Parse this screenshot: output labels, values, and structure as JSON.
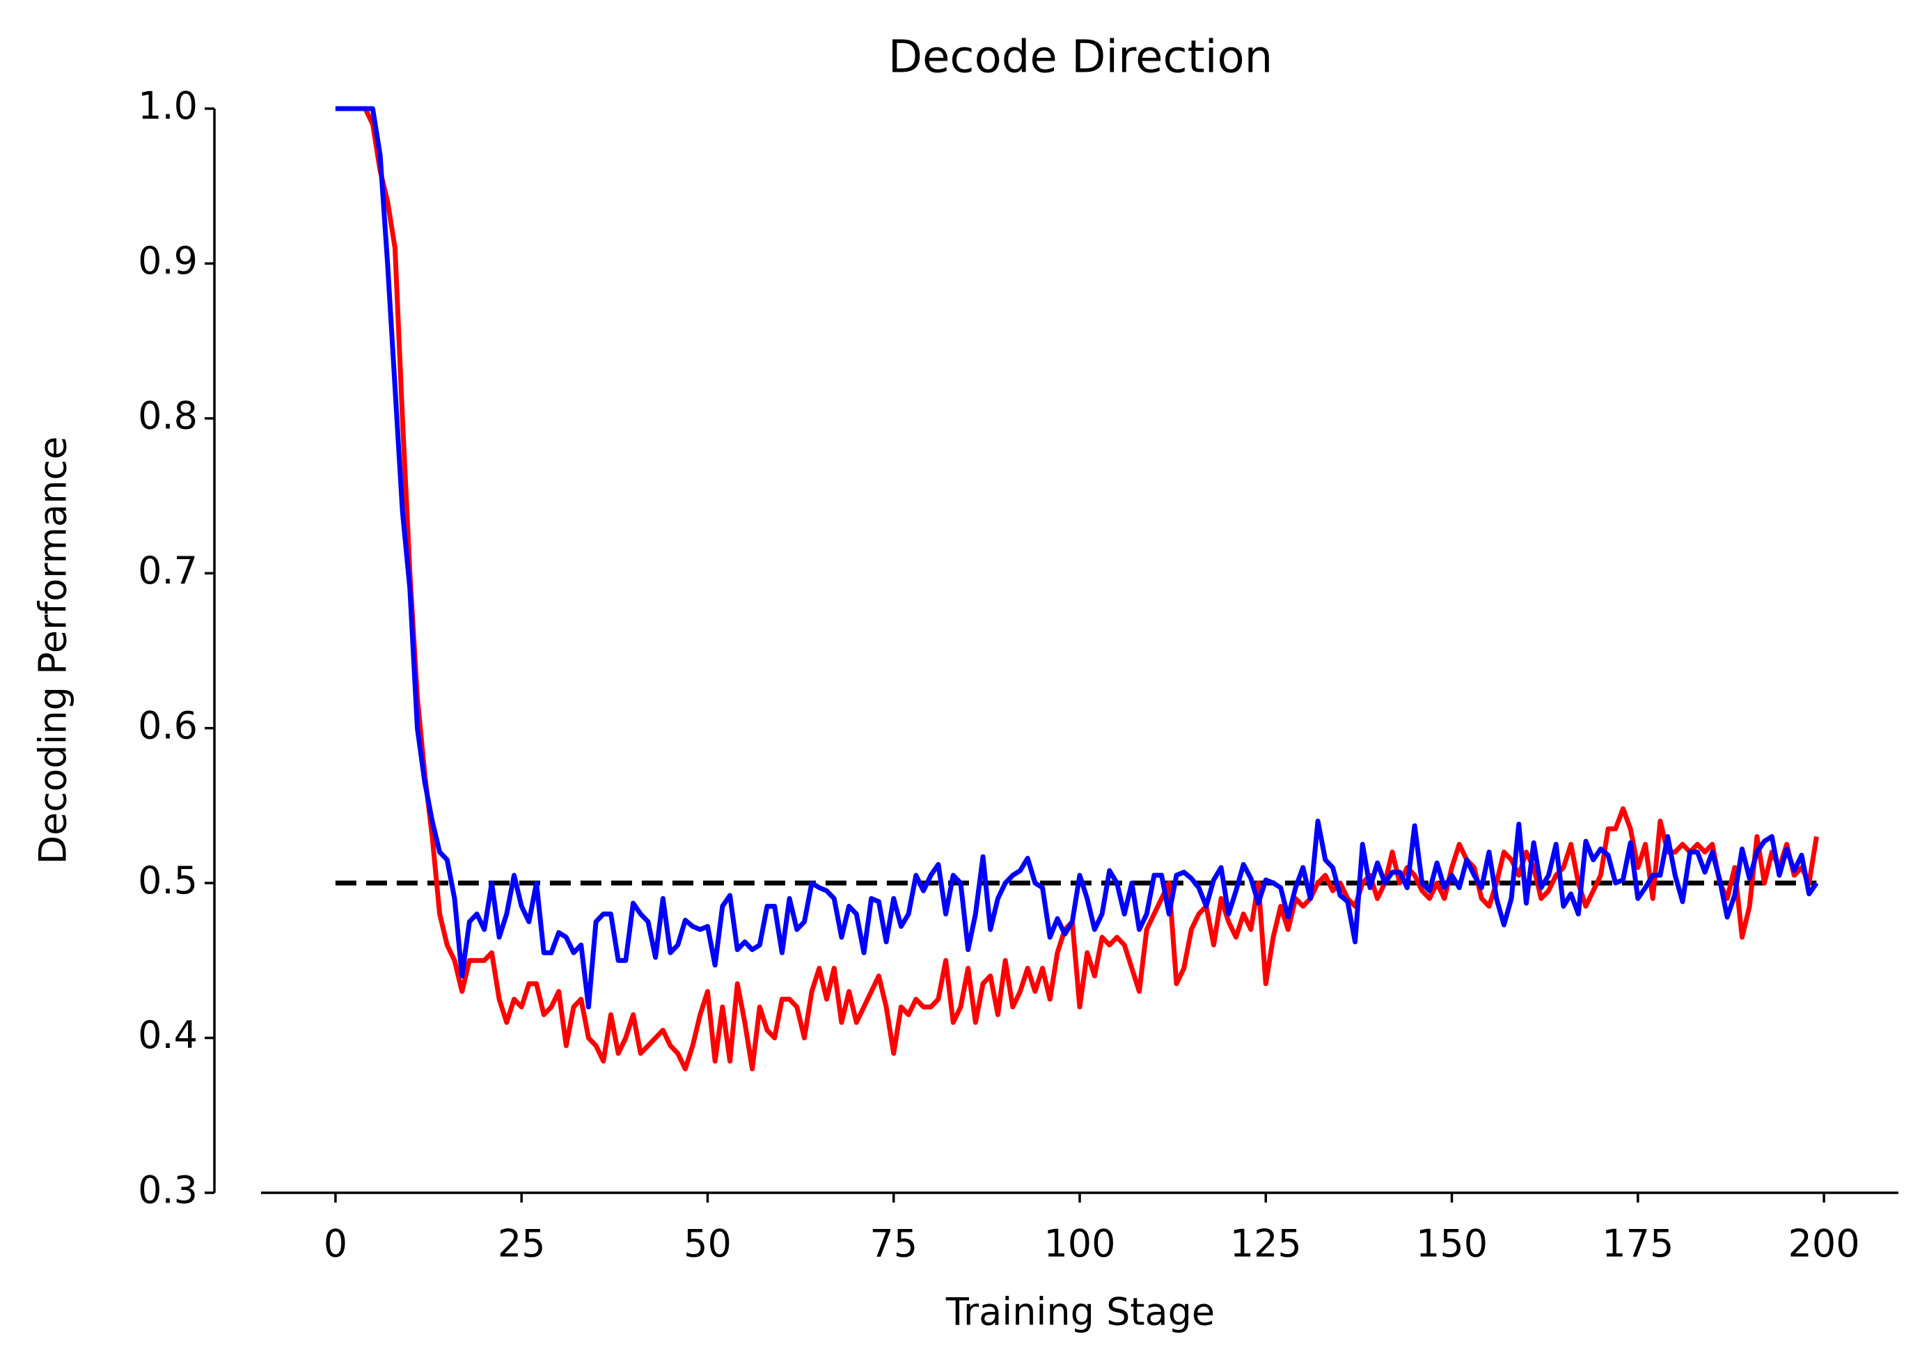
{
  "chart_data": {
    "type": "line",
    "title": "Decode Direction",
    "x_label": "Training Stage",
    "y_label": "Decoding Performance",
    "x": [
      0,
      1,
      2,
      3,
      4,
      5,
      6,
      7,
      8,
      9,
      10,
      11,
      12,
      13,
      14,
      15,
      16,
      17,
      18,
      19,
      20,
      21,
      22,
      23,
      24,
      25,
      26,
      27,
      28,
      29,
      30,
      31,
      32,
      33,
      34,
      35,
      36,
      37,
      38,
      39,
      40,
      41,
      42,
      43,
      44,
      45,
      46,
      47,
      48,
      49,
      50,
      51,
      52,
      53,
      54,
      55,
      56,
      57,
      58,
      59,
      60,
      61,
      62,
      63,
      64,
      65,
      66,
      67,
      68,
      69,
      70,
      71,
      72,
      73,
      74,
      75,
      76,
      77,
      78,
      79,
      80,
      81,
      82,
      83,
      84,
      85,
      86,
      87,
      88,
      89,
      90,
      91,
      92,
      93,
      94,
      95,
      96,
      97,
      98,
      99,
      100,
      101,
      102,
      103,
      104,
      105,
      106,
      107,
      108,
      109,
      110,
      111,
      112,
      113,
      114,
      115,
      116,
      117,
      118,
      119,
      120,
      121,
      122,
      123,
      124,
      125,
      126,
      127,
      128,
      129,
      130,
      131,
      132,
      133,
      134,
      135,
      136,
      137,
      138,
      139,
      140,
      141,
      142,
      143,
      144,
      145,
      146,
      147,
      148,
      149,
      150,
      151,
      152,
      153,
      154,
      155,
      156,
      157,
      158,
      159,
      160,
      161,
      162,
      163,
      164,
      165,
      166,
      167,
      168,
      169,
      170,
      171,
      172,
      173,
      174,
      175,
      176,
      177,
      178,
      179,
      180,
      181,
      182,
      183,
      184,
      185,
      186,
      187,
      188,
      189,
      190,
      191,
      192,
      193,
      194,
      195,
      196,
      197,
      198,
      199
    ],
    "series": [
      {
        "color": "#ff0000",
        "values": [
          1,
          1,
          1,
          1,
          1,
          0.99,
          0.96,
          0.94,
          0.91,
          0.8,
          0.7,
          0.62,
          0.57,
          0.53,
          0.48,
          0.46,
          0.45,
          0.43,
          0.45,
          0.45,
          0.45,
          0.455,
          0.425,
          0.41,
          0.425,
          0.42,
          0.435,
          0.435,
          0.415,
          0.42,
          0.43,
          0.395,
          0.42,
          0.425,
          0.4,
          0.395,
          0.385,
          0.415,
          0.39,
          0.4,
          0.415,
          0.39,
          0.395,
          0.4,
          0.405,
          0.395,
          0.39,
          0.38,
          0.395,
          0.415,
          0.43,
          0.385,
          0.42,
          0.385,
          0.435,
          0.41,
          0.38,
          0.42,
          0.405,
          0.4,
          0.425,
          0.425,
          0.42,
          0.4,
          0.43,
          0.445,
          0.425,
          0.445,
          0.41,
          0.43,
          0.41,
          0.42,
          0.43,
          0.44,
          0.42,
          0.39,
          0.42,
          0.415,
          0.425,
          0.42,
          0.42,
          0.425,
          0.45,
          0.41,
          0.42,
          0.445,
          0.41,
          0.435,
          0.44,
          0.415,
          0.45,
          0.42,
          0.43,
          0.445,
          0.43,
          0.445,
          0.425,
          0.455,
          0.47,
          0.475,
          0.42,
          0.455,
          0.44,
          0.465,
          0.46,
          0.465,
          0.46,
          0.445,
          0.43,
          0.47,
          0.48,
          0.49,
          0.5,
          0.435,
          0.445,
          0.47,
          0.48,
          0.485,
          0.46,
          0.49,
          0.475,
          0.465,
          0.48,
          0.47,
          0.5,
          0.435,
          0.465,
          0.485,
          0.47,
          0.49,
          0.485,
          0.49,
          0.5,
          0.505,
          0.495,
          0.5,
          0.49,
          0.485,
          0.5,
          0.505,
          0.49,
          0.5,
          0.52,
          0.5,
          0.51,
          0.505,
          0.495,
          0.49,
          0.5,
          0.49,
          0.51,
          0.525,
          0.515,
          0.51,
          0.49,
          0.485,
          0.5,
          0.52,
          0.515,
          0.505,
          0.52,
          0.51,
          0.49,
          0.495,
          0.505,
          0.51,
          0.525,
          0.5,
          0.485,
          0.495,
          0.505,
          0.535,
          0.535,
          0.548,
          0.535,
          0.51,
          0.525,
          0.49,
          0.54,
          0.52,
          0.52,
          0.525,
          0.52,
          0.525,
          0.52,
          0.525,
          0.5,
          0.49,
          0.51,
          0.465,
          0.485,
          0.53,
          0.5,
          0.52,
          0.51,
          0.525,
          0.505,
          0.51,
          0.5,
          0.53
        ]
      },
      {
        "color": "#0000ff",
        "values": [
          1,
          1,
          1,
          1,
          1,
          1,
          0.97,
          0.9,
          0.82,
          0.74,
          0.69,
          0.6,
          0.565,
          0.54,
          0.52,
          0.515,
          0.49,
          0.44,
          0.475,
          0.48,
          0.47,
          0.5,
          0.465,
          0.48,
          0.505,
          0.485,
          0.475,
          0.5,
          0.455,
          0.455,
          0.468,
          0.465,
          0.455,
          0.46,
          0.42,
          0.475,
          0.48,
          0.48,
          0.45,
          0.45,
          0.487,
          0.48,
          0.475,
          0.452,
          0.49,
          0.455,
          0.46,
          0.476,
          0.472,
          0.47,
          0.472,
          0.447,
          0.485,
          0.492,
          0.457,
          0.462,
          0.457,
          0.46,
          0.485,
          0.485,
          0.455,
          0.49,
          0.47,
          0.475,
          0.5,
          0.497,
          0.495,
          0.49,
          0.465,
          0.485,
          0.48,
          0.455,
          0.49,
          0.488,
          0.462,
          0.49,
          0.472,
          0.48,
          0.505,
          0.495,
          0.505,
          0.512,
          0.48,
          0.505,
          0.5,
          0.457,
          0.48,
          0.517,
          0.47,
          0.49,
          0.5,
          0.505,
          0.508,
          0.516,
          0.5,
          0.497,
          0.465,
          0.477,
          0.467,
          0.475,
          0.505,
          0.49,
          0.47,
          0.48,
          0.508,
          0.5,
          0.48,
          0.5,
          0.47,
          0.48,
          0.505,
          0.505,
          0.48,
          0.505,
          0.507,
          0.503,
          0.497,
          0.485,
          0.502,
          0.51,
          0.48,
          0.495,
          0.512,
          0.503,
          0.487,
          0.502,
          0.5,
          0.497,
          0.478,
          0.497,
          0.51,
          0.49,
          0.54,
          0.515,
          0.51,
          0.492,
          0.488,
          0.462,
          0.525,
          0.497,
          0.513,
          0.5,
          0.507,
          0.507,
          0.497,
          0.537,
          0.5,
          0.495,
          0.513,
          0.497,
          0.505,
          0.497,
          0.515,
          0.505,
          0.497,
          0.52,
          0.49,
          0.473,
          0.49,
          0.538,
          0.487,
          0.526,
          0.497,
          0.505,
          0.525,
          0.485,
          0.493,
          0.48,
          0.527,
          0.515,
          0.522,
          0.518,
          0.5,
          0.502,
          0.526,
          0.49,
          0.497,
          0.505,
          0.505,
          0.53,
          0.505,
          0.488,
          0.52,
          0.52,
          0.507,
          0.52,
          0.502,
          0.478,
          0.492,
          0.522,
          0.503,
          0.52,
          0.527,
          0.53,
          0.505,
          0.522,
          0.508,
          0.518,
          0.493,
          0.5
        ]
      }
    ],
    "reference_line": {
      "x": [
        0,
        199
      ],
      "values": [
        0.5,
        0.5
      ],
      "color": "#000000",
      "dashed": true
    },
    "xlim": [
      -10,
      210
    ],
    "ylim": [
      0.3,
      1.0
    ],
    "xticks": [
      0,
      25,
      50,
      75,
      100,
      125,
      150,
      175,
      200
    ],
    "yticks": [
      {
        "value": 0.3,
        "label": "0.3"
      },
      {
        "value": 0.4,
        "label": "0.4"
      },
      {
        "value": 0.5,
        "label": "0.5"
      },
      {
        "value": 0.6,
        "label": "0.6"
      },
      {
        "value": 0.7,
        "label": "0.7"
      },
      {
        "value": 0.8,
        "label": "0.8"
      },
      {
        "value": 0.9,
        "label": "0.9"
      },
      {
        "value": 1.0,
        "label": "1.0"
      }
    ],
    "grid": false
  }
}
